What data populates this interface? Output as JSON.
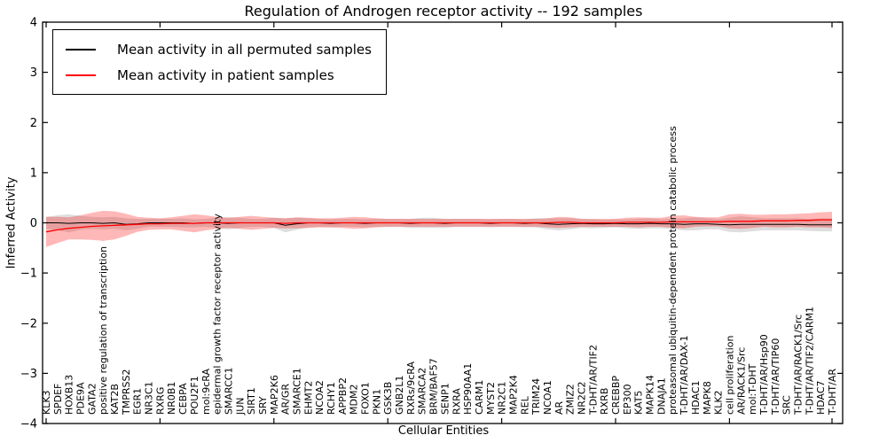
{
  "title": "Regulation of Androgen receptor activity -- 192 samples",
  "axes": {
    "xlabel": "Cellular Entities",
    "ylabel": "Inferred Activity"
  },
  "colors": {
    "permuted_line": "#000000",
    "patient_line": "#ff0000",
    "permuted_band": "rgba(0,0,0,0.13)",
    "patient_band": "rgba(255,0,0,0.28)",
    "spine": "#000000"
  },
  "chart_data": {
    "type": "line",
    "title": "Regulation of Androgen receptor activity -- 192 samples",
    "xlabel": "Cellular Entities",
    "ylabel": "Inferred Activity",
    "ylim": [
      -4,
      4
    ],
    "yticks": [
      4,
      3,
      2,
      1,
      0,
      -1,
      -2,
      -3,
      -4
    ],
    "ytick_labels": [
      "4",
      "3",
      "2",
      "1",
      "0",
      "−1",
      "−2",
      "−3",
      "−4"
    ],
    "grid": false,
    "legend_position": "upper left",
    "categories": [
      "KLK3",
      "SPDEF",
      "HOXB13",
      "PDE9A",
      "GATA2",
      "positive regulation of transcription",
      "KAT2B",
      "TMPRSS2",
      "EGR1",
      "NR3C1",
      "RXRG",
      "NR0B1",
      "CEBPA",
      "POU2F1",
      "mol:9cRA",
      "epidermal growth factor receptor activity",
      "SMARCC1",
      "JUN",
      "SIRT1",
      "SRY",
      "MAP2K6",
      "AR/GR",
      "SMARCE1",
      "EHMT2",
      "NCOA2",
      "RCHY1",
      "APPBP2",
      "MDM2",
      "FOXO1",
      "PKN1",
      "GSK3B",
      "GNB2L1",
      "RXRs/9cRA",
      "SMARCA2",
      "BRM/BAF57",
      "SENP1",
      "RXRA",
      "HSP90AA1",
      "CARM1",
      "MYST2",
      "NR2C1",
      "MAP2K4",
      "REL",
      "TRIM24",
      "NCOA1",
      "AR",
      "ZMIZ2",
      "NR2C2",
      "T-DHT/AR/TIF2",
      "RXRB",
      "CREBBP",
      "EP300",
      "KAT5",
      "MAPK14",
      "DNAJA1",
      "proteasomal ubiquitin-dependent protein catabolic process",
      "T-DHT/AR/DAX-1",
      "HDAC1",
      "MAPK8",
      "KLK2",
      "cell proliferation",
      "AR/RACK1/Src",
      "mol:T-DHT",
      "T-DHT/AR/Hsp90",
      "T-DHT/AR/TIP60",
      "SRC",
      "T-DHT/AR/RACK1/Src",
      "T-DHT/AR/TIF2/CARM1",
      "HDAC7",
      "T-DHT/AR"
    ],
    "series": [
      {
        "name": "Mean activity in all permuted samples",
        "color": "#000000",
        "values": [
          0,
          0,
          -0.01,
          0,
          0,
          -0.01,
          0,
          -0.03,
          -0.02,
          0,
          0,
          0,
          0,
          -0.01,
          0,
          0,
          -0.01,
          0,
          0,
          0,
          0,
          -0.05,
          -0.02,
          0,
          0,
          -0.01,
          0,
          0,
          -0.01,
          0,
          0,
          0,
          -0.01,
          0,
          0,
          -0.01,
          0,
          0,
          0,
          -0.01,
          0,
          0,
          -0.01,
          0,
          -0.02,
          -0.03,
          -0.02,
          -0.01,
          -0.02,
          -0.02,
          -0.01,
          -0.02,
          -0.02,
          -0.01,
          -0.02,
          -0.02,
          -0.03,
          -0.02,
          -0.02,
          -0.03,
          -0.04,
          -0.03,
          -0.03,
          -0.03,
          -0.03,
          -0.03,
          -0.03,
          -0.04,
          -0.04,
          -0.04
        ],
        "band_halfwidth": [
          0.12,
          0.15,
          0.18,
          0.14,
          0.12,
          0.12,
          0.12,
          0.12,
          0.1,
          0.08,
          0.08,
          0.08,
          0.09,
          0.08,
          0.08,
          0.1,
          0.12,
          0.1,
          0.08,
          0.08,
          0.1,
          0.14,
          0.12,
          0.09,
          0.08,
          0.08,
          0.08,
          0.08,
          0.08,
          0.08,
          0.08,
          0.08,
          0.09,
          0.1,
          0.1,
          0.09,
          0.08,
          0.08,
          0.08,
          0.08,
          0.08,
          0.08,
          0.08,
          0.09,
          0.11,
          0.12,
          0.11,
          0.09,
          0.09,
          0.08,
          0.08,
          0.09,
          0.1,
          0.1,
          0.09,
          0.1,
          0.12,
          0.13,
          0.11,
          0.1,
          0.14,
          0.16,
          0.14,
          0.12,
          0.12,
          0.12,
          0.12,
          0.12,
          0.13,
          0.13
        ]
      },
      {
        "name": "Mean activity in patient samples",
        "color": "#ff0000",
        "values": [
          -0.18,
          -0.14,
          -0.11,
          -0.09,
          -0.07,
          -0.06,
          -0.05,
          -0.04,
          -0.03,
          -0.02,
          -0.02,
          -0.01,
          -0.01,
          -0.01,
          0,
          0,
          0,
          0,
          0,
          0,
          0,
          -0.01,
          0,
          0,
          0,
          0,
          0,
          0,
          0,
          0,
          0,
          0,
          0,
          0,
          0,
          0,
          0,
          0,
          0,
          0,
          0,
          0,
          0,
          0,
          0,
          0.01,
          0.01,
          0,
          0,
          0,
          0,
          0.01,
          0.01,
          0.01,
          0.01,
          0.02,
          0.02,
          0.02,
          0.02,
          0.02,
          0.03,
          0.03,
          0.03,
          0.04,
          0.04,
          0.04,
          0.05,
          0.05,
          0.06,
          0.06
        ],
        "band_halfwidth": [
          0.3,
          0.26,
          0.22,
          0.24,
          0.27,
          0.3,
          0.28,
          0.22,
          0.15,
          0.12,
          0.11,
          0.12,
          0.15,
          0.18,
          0.15,
          0.12,
          0.1,
          0.12,
          0.14,
          0.12,
          0.1,
          0.1,
          0.11,
          0.1,
          0.09,
          0.09,
          0.1,
          0.12,
          0.11,
          0.09,
          0.08,
          0.08,
          0.08,
          0.08,
          0.08,
          0.08,
          0.08,
          0.08,
          0.08,
          0.08,
          0.08,
          0.08,
          0.08,
          0.08,
          0.09,
          0.11,
          0.1,
          0.08,
          0.08,
          0.08,
          0.08,
          0.09,
          0.1,
          0.09,
          0.09,
          0.12,
          0.13,
          0.1,
          0.09,
          0.09,
          0.14,
          0.15,
          0.13,
          0.12,
          0.13,
          0.13,
          0.13,
          0.14,
          0.15,
          0.16
        ]
      }
    ]
  }
}
